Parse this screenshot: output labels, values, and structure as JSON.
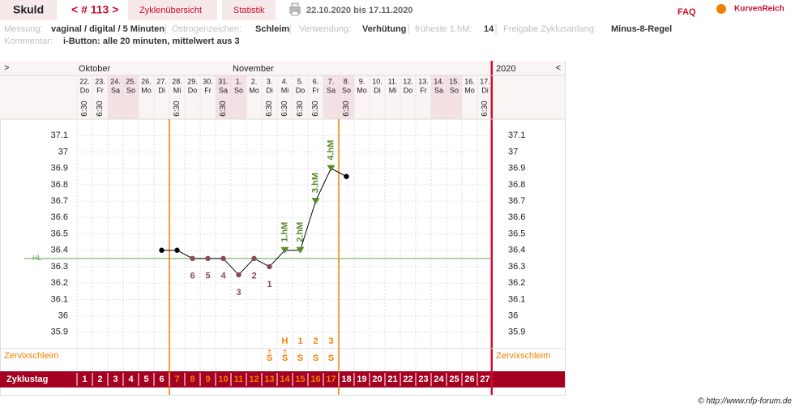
{
  "header": {
    "tab": "Skuld",
    "cycle": "< # 113 >",
    "links": [
      "Zyklenübersicht",
      "Statistik"
    ],
    "range": "22.10.2020 bis 17.11.2020",
    "faq": "FAQ",
    "logo": "KurvenReich"
  },
  "info": {
    "fields": [
      {
        "label": "Messung:",
        "value": "vaginal / digital / 5 Minuten"
      },
      {
        "label": "Östrogenzeichen:",
        "value": "Schleim"
      },
      {
        "label": "Verwendung:",
        "value": "Verhütung"
      },
      {
        "label": "früheste 1.hM:",
        "value": "14"
      },
      {
        "label": "Freigabe Zyklusanfang:",
        "value": "Minus-8-Regel"
      }
    ],
    "comment": {
      "label": "Kommentar:",
      "value": "i-Button: alle 20 minuten, mittelwert aus 3"
    }
  },
  "chart_data": {
    "type": "line",
    "nav_prev": ">",
    "nav_next": "<",
    "year": "2020",
    "months": [
      "Oktober",
      null,
      null,
      null,
      null,
      null,
      null,
      null,
      null,
      null,
      "November",
      null,
      null,
      null,
      null,
      null,
      null,
      null,
      null,
      null,
      null,
      null,
      null,
      null,
      null,
      null,
      null
    ],
    "x": [
      "22.",
      "23.",
      "24.",
      "25.",
      "26.",
      "27.",
      "28.",
      "29.",
      "30.",
      "31.",
      "1.",
      "2.",
      "3.",
      "4.",
      "5.",
      "6.",
      "7.",
      "8.",
      "9.",
      "10.",
      "11.",
      "12.",
      "13.",
      "14.",
      "15.",
      "16.",
      "17."
    ],
    "weekdays": [
      "Do",
      "Fr",
      "Sa",
      "So",
      "Mo",
      "Di",
      "Mi",
      "Do",
      "Fr",
      "Sa",
      "So",
      "Mo",
      "Di",
      "Mi",
      "Do",
      "Fr",
      "Sa",
      "So",
      "Mo",
      "Di",
      "Mi",
      "Do",
      "Fr",
      "Sa",
      "So",
      "Mo",
      "Di"
    ],
    "times": [
      "6:30",
      "6:30",
      null,
      null,
      null,
      null,
      "6:30",
      null,
      null,
      "6:30",
      null,
      null,
      "6:30",
      "6:30",
      "6:30",
      "6:30",
      null,
      "6:30",
      null,
      null,
      null,
      null,
      null,
      null,
      null,
      null,
      "6:30"
    ],
    "values": [
      null,
      null,
      null,
      null,
      null,
      36.4,
      36.4,
      36.35,
      36.35,
      36.35,
      36.25,
      36.35,
      36.3,
      36.4,
      36.4,
      36.7,
      36.9,
      36.85,
      null,
      null,
      null,
      null,
      null,
      null,
      null,
      null,
      null
    ],
    "point_labels": [
      null,
      null,
      null,
      null,
      null,
      null,
      null,
      "6",
      "5",
      "4",
      "3",
      "2",
      "1",
      "1.hM",
      "2.hM",
      "3.hM",
      "4.hM",
      null,
      null,
      null,
      null,
      null,
      null,
      null,
      null,
      null,
      null
    ],
    "color": "#000000",
    "hm_color": "#5a8a2a",
    "label_color": "#8a4a5a",
    "ylim": [
      35.8,
      37.2
    ],
    "yticks": [
      35.9,
      36,
      36.1,
      36.2,
      36.3,
      36.4,
      36.5,
      36.6,
      36.7,
      36.8,
      36.9,
      37,
      37.1
    ],
    "cover_line": {
      "label": "HL",
      "value": 36.35,
      "color": "#6aa84f"
    },
    "mucus_label": "Zervixschleim",
    "mucus_counts": [
      null,
      null,
      null,
      null,
      null,
      null,
      null,
      null,
      null,
      null,
      null,
      null,
      null,
      "H",
      "1",
      "2",
      "3",
      null,
      null,
      null,
      null,
      null,
      null,
      null,
      null,
      null,
      null
    ],
    "mucus_marks": [
      null,
      null,
      null,
      null,
      null,
      null,
      null,
      null,
      null,
      null,
      null,
      null,
      "±",
      "±",
      null,
      null,
      null,
      null,
      null,
      null,
      null,
      null,
      null,
      null,
      null,
      null,
      null
    ],
    "mucus": [
      null,
      null,
      null,
      null,
      null,
      null,
      null,
      null,
      null,
      null,
      null,
      null,
      "S",
      "S",
      "S",
      "S",
      "S",
      null,
      null,
      null,
      null,
      null,
      null,
      null,
      null,
      null,
      null
    ],
    "cycle_day_label": "Zyklustag",
    "cycle_days": [
      1,
      2,
      3,
      4,
      5,
      6,
      7,
      8,
      9,
      10,
      11,
      12,
      13,
      14,
      15,
      16,
      17,
      18,
      19,
      20,
      21,
      22,
      23,
      24,
      25,
      26,
      27
    ],
    "cycle_day_colors": [
      "#ffffff",
      "#ffffff",
      "#ffffff",
      "#ffffff",
      "#ffffff",
      "#ffffff",
      "#f07f00",
      "#f07f00",
      "#f07f00",
      "#f07f00",
      "#f07f00",
      "#f07f00",
      "#f07f00",
      "#f07f00",
      "#f07f00",
      "#f07f00",
      "#f07f00",
      "#ffffff",
      "#ffffff",
      "#ffffff",
      "#ffffff",
      "#ffffff",
      "#ffffff",
      "#ffffff",
      "#ffffff",
      "#ffffff",
      "#ffffff"
    ]
  },
  "footer": "© http://www.nfp-forum.de"
}
